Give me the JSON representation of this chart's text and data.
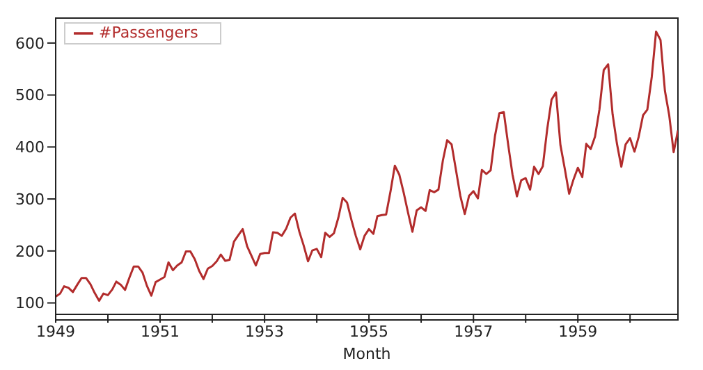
{
  "chart_data": {
    "type": "line",
    "xlabel": "Month",
    "x": [
      "1949-01",
      "1949-02",
      "1949-03",
      "1949-04",
      "1949-05",
      "1949-06",
      "1949-07",
      "1949-08",
      "1949-09",
      "1949-10",
      "1949-11",
      "1949-12",
      "1950-01",
      "1950-02",
      "1950-03",
      "1950-04",
      "1950-05",
      "1950-06",
      "1950-07",
      "1950-08",
      "1950-09",
      "1950-10",
      "1950-11",
      "1950-12",
      "1951-01",
      "1951-02",
      "1951-03",
      "1951-04",
      "1951-05",
      "1951-06",
      "1951-07",
      "1951-08",
      "1951-09",
      "1951-10",
      "1951-11",
      "1951-12",
      "1952-01",
      "1952-02",
      "1952-03",
      "1952-04",
      "1952-05",
      "1952-06",
      "1952-07",
      "1952-08",
      "1952-09",
      "1952-10",
      "1952-11",
      "1952-12",
      "1953-01",
      "1953-02",
      "1953-03",
      "1953-04",
      "1953-05",
      "1953-06",
      "1953-07",
      "1953-08",
      "1953-09",
      "1953-10",
      "1953-11",
      "1953-12",
      "1954-01",
      "1954-02",
      "1954-03",
      "1954-04",
      "1954-05",
      "1954-06",
      "1954-07",
      "1954-08",
      "1954-09",
      "1954-10",
      "1954-11",
      "1954-12",
      "1955-01",
      "1955-02",
      "1955-03",
      "1955-04",
      "1955-05",
      "1955-06",
      "1955-07",
      "1955-08",
      "1955-09",
      "1955-10",
      "1955-11",
      "1955-12",
      "1956-01",
      "1956-02",
      "1956-03",
      "1956-04",
      "1956-05",
      "1956-06",
      "1956-07",
      "1956-08",
      "1956-09",
      "1956-10",
      "1956-11",
      "1956-12",
      "1957-01",
      "1957-02",
      "1957-03",
      "1957-04",
      "1957-05",
      "1957-06",
      "1957-07",
      "1957-08",
      "1957-09",
      "1957-10",
      "1957-11",
      "1957-12",
      "1958-01",
      "1958-02",
      "1958-03",
      "1958-04",
      "1958-05",
      "1958-06",
      "1958-07",
      "1958-08",
      "1958-09",
      "1958-10",
      "1958-11",
      "1958-12",
      "1959-01",
      "1959-02",
      "1959-03",
      "1959-04",
      "1959-05",
      "1959-06",
      "1959-07",
      "1959-08",
      "1959-09",
      "1959-10",
      "1959-11",
      "1959-12",
      "1960-01",
      "1960-02",
      "1960-03",
      "1960-04",
      "1960-05",
      "1960-06",
      "1960-07",
      "1960-08",
      "1960-09",
      "1960-10",
      "1960-11",
      "1960-12"
    ],
    "series": [
      {
        "name": "#Passengers",
        "color": "#b22c2c",
        "values": [
          112,
          118,
          132,
          129,
          121,
          135,
          148,
          148,
          136,
          119,
          104,
          118,
          115,
          126,
          141,
          135,
          125,
          149,
          170,
          170,
          158,
          133,
          114,
          140,
          145,
          150,
          178,
          163,
          172,
          178,
          199,
          199,
          184,
          162,
          146,
          166,
          171,
          180,
          193,
          181,
          183,
          218,
          230,
          242,
          209,
          191,
          172,
          194,
          196,
          196,
          236,
          235,
          229,
          243,
          264,
          272,
          237,
          211,
          180,
          201,
          204,
          188,
          235,
          227,
          234,
          264,
          302,
          293,
          259,
          229,
          203,
          229,
          242,
          233,
          267,
          269,
          270,
          315,
          364,
          347,
          312,
          274,
          237,
          278,
          284,
          277,
          317,
          313,
          318,
          374,
          413,
          405,
          355,
          306,
          271,
          306,
          315,
          301,
          356,
          348,
          355,
          422,
          465,
          467,
          404,
          347,
          305,
          336,
          340,
          318,
          362,
          348,
          363,
          435,
          491,
          505,
          404,
          359,
          310,
          337,
          360,
          342,
          406,
          396,
          420,
          472,
          548,
          559,
          463,
          407,
          362,
          405,
          417,
          391,
          419,
          461,
          472,
          535,
          622,
          606,
          508,
          461,
          390,
          432
        ]
      }
    ],
    "xlim": [
      "1949-01",
      "1960-12"
    ],
    "xticks": [
      {
        "value": "1949",
        "label": "1949"
      },
      {
        "value": "1950",
        "label": null
      },
      {
        "value": "1951",
        "label": "1951"
      },
      {
        "value": "1952",
        "label": null
      },
      {
        "value": "1953",
        "label": "1953"
      },
      {
        "value": "1954",
        "label": null
      },
      {
        "value": "1955",
        "label": "1955"
      },
      {
        "value": "1956",
        "label": null
      },
      {
        "value": "1957",
        "label": "1957"
      },
      {
        "value": "1958",
        "label": null
      },
      {
        "value": "1959",
        "label": "1959"
      },
      {
        "value": "1960",
        "label": null
      }
    ],
    "ylim": [
      78,
      648
    ],
    "yticks": [
      100,
      200,
      300,
      400,
      500,
      600
    ],
    "grid": false,
    "legend": "top left",
    "line_style": "solid",
    "marker": "none"
  }
}
